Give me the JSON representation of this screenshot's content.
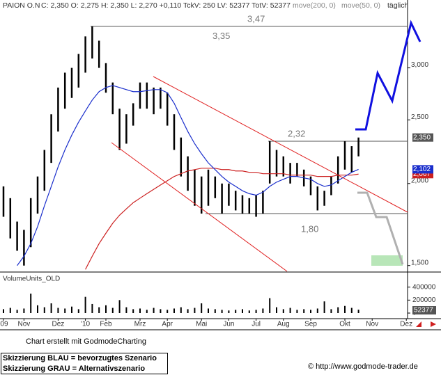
{
  "chart_data": {
    "type": "hilo",
    "title": "PAION O.N",
    "subtitle": "C: 2,350 O: 2,275 H: 2,350 L: 2,270 +0,110 TckV: 250 LV: 52377 TotV: 52377",
    "period": "täglich",
    "log": true,
    "ylim": [
      1.47,
      3.76
    ],
    "yticks": [
      {
        "value": 1.5,
        "label": "1,500"
      },
      {
        "value": 2,
        "label": "2,000"
      },
      {
        "value": 2.5,
        "label": "2,500"
      },
      {
        "value": 3,
        "label": "3,000"
      }
    ],
    "categories": [
      "'09",
      null,
      null,
      "Nov",
      null,
      null,
      null,
      null,
      "Dez",
      null,
      null,
      null,
      "'10",
      null,
      null,
      "Feb",
      null,
      null,
      null,
      null,
      "Mrz",
      null,
      null,
      null,
      "Apr",
      null,
      null,
      null,
      null,
      "Mai",
      null,
      null,
      null,
      "Jun",
      null,
      null,
      null,
      "Jul",
      null,
      null,
      null,
      "Aug",
      null,
      null,
      null,
      "Sep",
      null,
      null,
      null,
      null,
      "Okt",
      null,
      null,
      null,
      "Nov",
      null,
      null,
      null,
      null,
      "Dez"
    ],
    "series": [
      {
        "name": "PAION O.N",
        "color": "#000000",
        "high": [
          1.98,
          1.9,
          1.75,
          1.7,
          1.9,
          2.05,
          2.25,
          2.55,
          2.8,
          2.95,
          3.0,
          3.15,
          3.35,
          3.47,
          3.3,
          3.05,
          2.85,
          2.6,
          2.55,
          2.65,
          2.85,
          2.85,
          2.8,
          2.8,
          2.75,
          2.55,
          2.35,
          2.2,
          2.1,
          2.05,
          2.1,
          2.05,
          2.0,
          2.0,
          1.95,
          1.92,
          1.9,
          1.92,
          1.95,
          2.32,
          2.25,
          2.2,
          2.15,
          2.15,
          2.1,
          2.05,
          1.98,
          1.95,
          2.05,
          2.2,
          2.32,
          2.28,
          2.35,
          null,
          null,
          null,
          null,
          null,
          null,
          null
        ],
        "low": [
          1.78,
          1.65,
          1.58,
          1.5,
          1.6,
          1.8,
          1.95,
          2.15,
          2.4,
          2.6,
          2.7,
          2.8,
          2.95,
          3.1,
          3.0,
          2.75,
          2.55,
          2.25,
          2.3,
          2.45,
          2.6,
          2.6,
          2.55,
          2.6,
          2.45,
          2.25,
          2.05,
          1.95,
          1.85,
          1.8,
          1.85,
          1.9,
          1.8,
          1.85,
          1.82,
          1.8,
          1.8,
          1.78,
          1.8,
          2.0,
          2.05,
          2.05,
          2.0,
          2.05,
          1.98,
          1.92,
          1.82,
          1.85,
          1.92,
          2.0,
          2.1,
          2.08,
          2.2,
          null,
          null,
          null,
          null,
          null,
          null,
          null
        ],
        "last": {
          "value": 2.35,
          "label": "2,350"
        }
      },
      {
        "name": "move(200, 0)",
        "color": "#cc2020",
        "values": [
          null,
          null,
          null,
          null,
          null,
          null,
          null,
          null,
          null,
          null,
          null,
          null,
          1.48,
          1.55,
          1.62,
          1.68,
          1.74,
          1.79,
          1.83,
          1.87,
          1.9,
          1.93,
          1.96,
          1.99,
          2.02,
          2.05,
          2.07,
          2.09,
          2.1,
          2.11,
          2.11,
          2.11,
          2.1,
          2.1,
          2.09,
          2.09,
          2.08,
          2.08,
          2.07,
          2.07,
          2.07,
          2.07,
          2.06,
          2.06,
          2.06,
          2.06,
          2.05,
          2.05,
          2.05,
          2.06,
          2.06,
          2.06,
          2.067,
          null,
          null,
          null,
          null,
          null,
          null,
          null
        ],
        "last": {
          "value": 2.067,
          "label": "2,067"
        }
      },
      {
        "name": "move(50, 0)",
        "color": "#1a2ecc",
        "values": [
          null,
          null,
          1.5,
          1.55,
          1.62,
          1.72,
          1.85,
          1.98,
          2.12,
          2.25,
          2.37,
          2.48,
          2.58,
          2.68,
          2.76,
          2.8,
          2.82,
          2.8,
          2.78,
          2.76,
          2.76,
          2.77,
          2.78,
          2.78,
          2.75,
          2.65,
          2.52,
          2.4,
          2.3,
          2.22,
          2.15,
          2.1,
          2.05,
          2.01,
          1.98,
          1.95,
          1.93,
          1.92,
          1.94,
          1.98,
          2.01,
          2.03,
          2.05,
          2.05,
          2.04,
          2.03,
          2.0,
          1.98,
          1.99,
          2.02,
          2.05,
          2.08,
          2.102,
          null,
          null,
          null,
          null,
          null,
          null,
          null
        ],
        "last": {
          "value": 2.102,
          "label": "2,102"
        }
      }
    ],
    "levels": [
      {
        "value": 3.47,
        "label": "3,47"
      },
      {
        "value": 2.32,
        "label": "2,32"
      },
      {
        "value": 1.8,
        "label": "1,80"
      }
    ],
    "annotations": [
      {
        "value": 3.35,
        "label": "3,35"
      }
    ],
    "volume": {
      "name": "VolumeUnits_OLD",
      "color": "#000000",
      "ylim": [
        0,
        450000
      ],
      "yticks": [
        0,
        200000,
        400000
      ],
      "values": [
        60000,
        80000,
        50000,
        70000,
        300000,
        120000,
        90000,
        150000,
        80000,
        70000,
        100000,
        60000,
        250000,
        140000,
        90000,
        120000,
        80000,
        200000,
        90000,
        60000,
        70000,
        50000,
        80000,
        60000,
        50000,
        70000,
        90000,
        60000,
        80000,
        150000,
        70000,
        60000,
        50000,
        40000,
        50000,
        60000,
        40000,
        50000,
        70000,
        230000,
        90000,
        60000,
        80000,
        50000,
        60000,
        50000,
        70000,
        180000,
        60000,
        90000,
        110000,
        80000,
        52377,
        null,
        null,
        null,
        null,
        null,
        null,
        null
      ]
    }
  },
  "footer": {
    "credit": "Chart erstellt mit GodmodeCharting",
    "legend": [
      "Skizzierung BLAU = bevorzugtes Szenario",
      "Skizzierung GRAU = Alternativszenario"
    ],
    "copyright": "© http://www.godmode-trader.de"
  }
}
